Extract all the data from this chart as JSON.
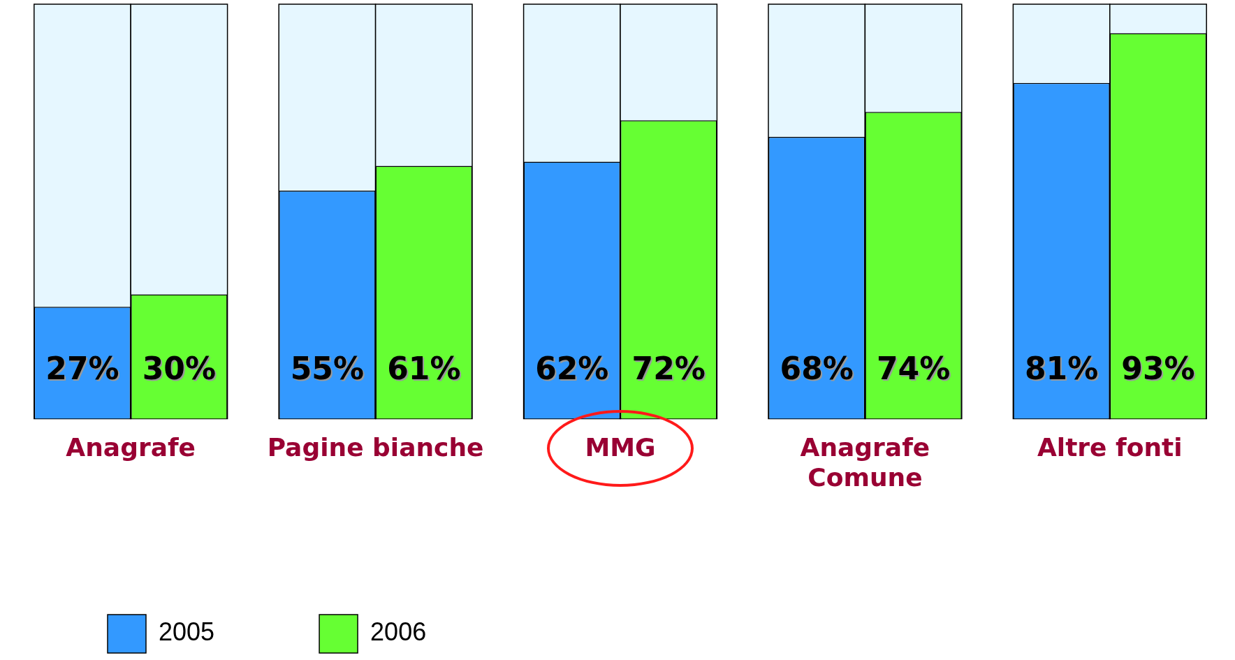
{
  "chart_data": {
    "type": "bar",
    "categories": [
      "Anagrafe",
      "Pagine bianche",
      "MMG",
      "Anagrafe Comune",
      "Altre fonti"
    ],
    "series": [
      {
        "name": "2005",
        "color": "#3399ff",
        "values": [
          27,
          55,
          62,
          68,
          81
        ],
        "value_labels": [
          "27%",
          "55%",
          "62%",
          "68%",
          "81%"
        ]
      },
      {
        "name": "2006",
        "color": "#66ff33",
        "values": [
          30,
          61,
          72,
          74,
          93
        ],
        "value_labels": [
          "30%",
          "61%",
          "72%",
          "74%",
          "93%"
        ]
      }
    ],
    "ylim": [
      0,
      100
    ],
    "tick_labels": "x",
    "grid": false,
    "legend": "bottom left"
  }
}
